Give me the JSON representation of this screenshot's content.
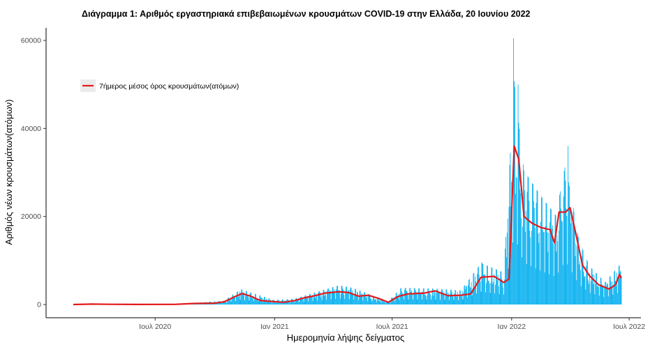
{
  "chart_data": {
    "type": "bar+line",
    "title": "Διάγραμμα 1: Αριθμός εργαστηριακά επιβεβαιωμένων κρουσμάτων COVID-19 στην Ελλάδα, 20 Ιουνίου 2022",
    "xlabel": "Ημερομηνία λήψης δείγματος",
    "ylabel": "Αριθμός νέων κρουσμάτων(ατόμων)",
    "x_range": [
      "2020-02-26",
      "2022-06-19"
    ],
    "ylim": [
      0,
      65000
    ],
    "y_ticks": [
      0,
      20000,
      40000,
      60000
    ],
    "y_tick_labels": [
      "0",
      "20000",
      "40000",
      "60000"
    ],
    "x_ticks": [
      "2020-07-01",
      "2021-01-01",
      "2021-07-01",
      "2022-01-01",
      "2022-07-01"
    ],
    "x_tick_labels": [
      "Ιουλ 2020",
      "Ιαν 2021",
      "Ιουλ 2021",
      "Ιαν 2022",
      "Ιουλ 2022"
    ],
    "grid": false,
    "legend": {
      "position": "top-left",
      "entries": [
        {
          "label": "7ήμερος μέσος όρος κρουσμάτων(ατόμων)",
          "color": "#e41a1c"
        }
      ]
    },
    "colors": {
      "bars": "#00aeef",
      "line": "#e41a1c"
    },
    "series": [
      {
        "type": "bar",
        "approximate_level_points": [
          [
            "2020-02-26",
            0
          ],
          [
            "2020-03-31",
            100
          ],
          [
            "2020-05-31",
            10
          ],
          [
            "2020-07-31",
            40
          ],
          [
            "2020-08-31",
            250
          ],
          [
            "2020-10-15",
            600
          ],
          [
            "2020-11-10",
            2400
          ],
          [
            "2020-12-31",
            700
          ],
          [
            "2021-01-31",
            900
          ],
          [
            "2021-03-15",
            2200
          ],
          [
            "2021-04-10",
            3000
          ],
          [
            "2021-05-01",
            2600
          ],
          [
            "2021-06-25",
            500
          ],
          [
            "2021-07-15",
            2600
          ],
          [
            "2021-09-01",
            2500
          ],
          [
            "2021-10-15",
            2200
          ],
          [
            "2021-11-15",
            6500
          ],
          [
            "2021-12-20",
            5000
          ],
          [
            "2022-01-05",
            35000
          ],
          [
            "2022-01-20",
            21000
          ],
          [
            "2022-02-15",
            17000
          ],
          [
            "2022-03-10",
            14000
          ],
          [
            "2022-03-25",
            22000
          ],
          [
            "2022-04-15",
            10000
          ],
          [
            "2022-05-01",
            6000
          ],
          [
            "2022-05-25",
            3500
          ],
          [
            "2022-06-19",
            6500
          ]
        ],
        "peaks": [
          [
            "2022-01-04",
            60500
          ],
          [
            "2022-01-11",
            50000
          ],
          [
            "2022-03-29",
            36000
          ],
          [
            "2021-11-16",
            9600
          ]
        ]
      },
      {
        "name": "7ήμερος μέσος όρος κρουσμάτων(ατόμων)",
        "type": "line",
        "points": [
          [
            "2020-02-26",
            0
          ],
          [
            "2020-03-25",
            100
          ],
          [
            "2020-04-20",
            50
          ],
          [
            "2020-05-31",
            10
          ],
          [
            "2020-07-31",
            30
          ],
          [
            "2020-08-31",
            230
          ],
          [
            "2020-09-30",
            300
          ],
          [
            "2020-10-15",
            600
          ],
          [
            "2020-11-01",
            1800
          ],
          [
            "2020-11-12",
            2500
          ],
          [
            "2020-11-25",
            1900
          ],
          [
            "2020-12-10",
            900
          ],
          [
            "2020-12-31",
            650
          ],
          [
            "2021-01-15",
            500
          ],
          [
            "2021-02-01",
            900
          ],
          [
            "2021-02-15",
            1500
          ],
          [
            "2021-03-01",
            1900
          ],
          [
            "2021-03-20",
            2600
          ],
          [
            "2021-04-10",
            2900
          ],
          [
            "2021-04-25",
            2700
          ],
          [
            "2021-05-10",
            1900
          ],
          [
            "2021-05-25",
            2100
          ],
          [
            "2021-06-10",
            1400
          ],
          [
            "2021-06-25",
            500
          ],
          [
            "2021-07-10",
            1800
          ],
          [
            "2021-07-25",
            2400
          ],
          [
            "2021-08-20",
            2600
          ],
          [
            "2021-09-05",
            3100
          ],
          [
            "2021-09-25",
            2000
          ],
          [
            "2021-10-15",
            2100
          ],
          [
            "2021-10-30",
            2400
          ],
          [
            "2021-11-15",
            6200
          ],
          [
            "2021-12-05",
            6400
          ],
          [
            "2021-12-20",
            5000
          ],
          [
            "2021-12-28",
            5800
          ],
          [
            "2022-01-05",
            36000
          ],
          [
            "2022-01-12",
            33000
          ],
          [
            "2022-01-20",
            20000
          ],
          [
            "2022-02-01",
            18500
          ],
          [
            "2022-02-15",
            17500
          ],
          [
            "2022-03-01",
            17000
          ],
          [
            "2022-03-08",
            14000
          ],
          [
            "2022-03-15",
            21000
          ],
          [
            "2022-03-25",
            21000
          ],
          [
            "2022-04-01",
            22000
          ],
          [
            "2022-04-10",
            16000
          ],
          [
            "2022-04-20",
            9000
          ],
          [
            "2022-05-01",
            6500
          ],
          [
            "2022-05-15",
            4500
          ],
          [
            "2022-05-31",
            3500
          ],
          [
            "2022-06-10",
            4500
          ],
          [
            "2022-06-16",
            6800
          ],
          [
            "2022-06-19",
            6000
          ]
        ]
      }
    ]
  }
}
